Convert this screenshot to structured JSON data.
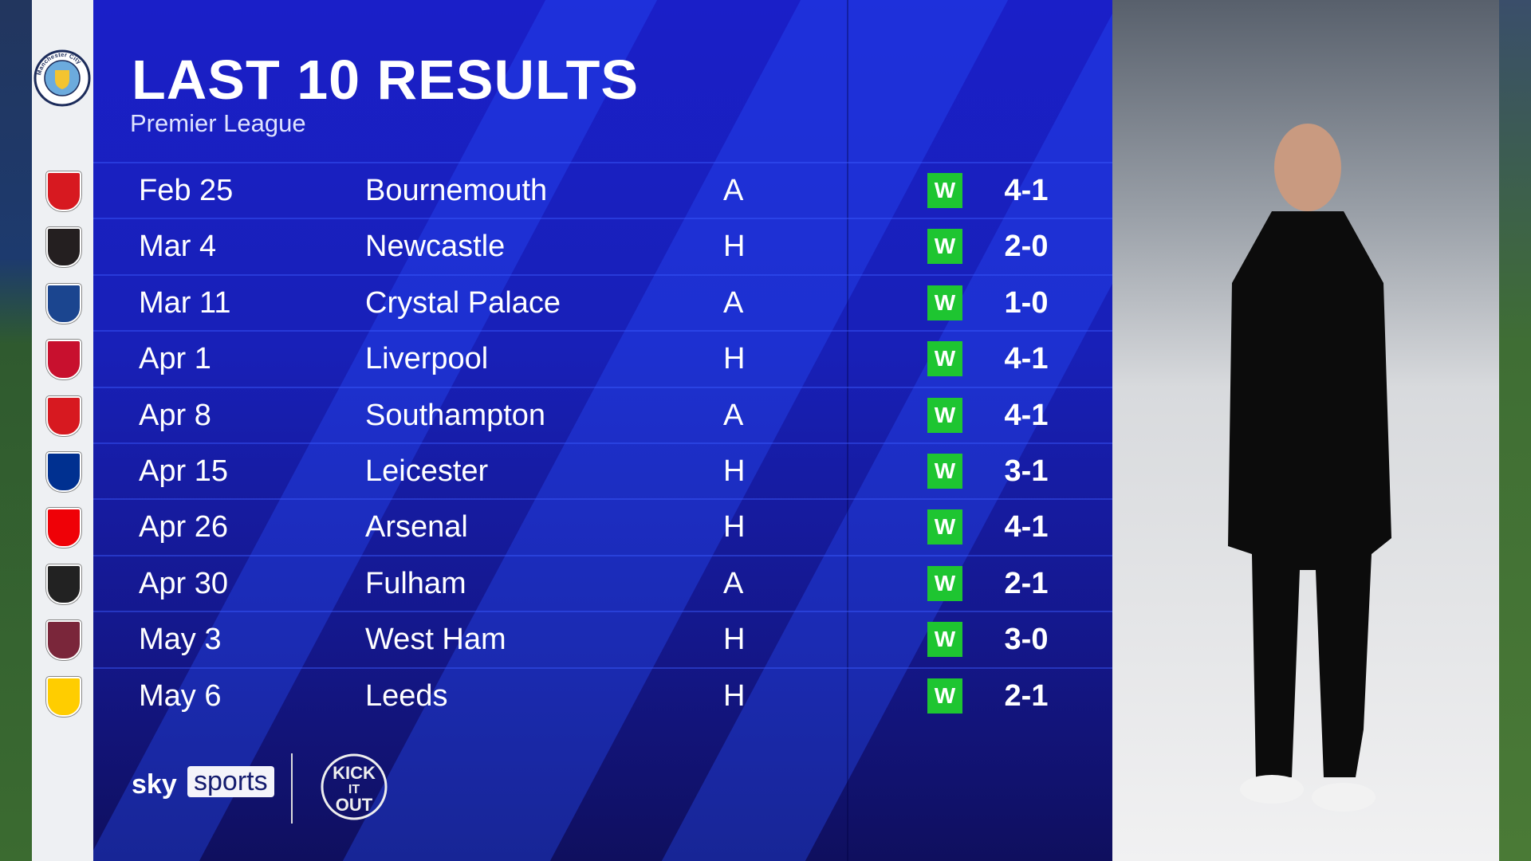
{
  "header": {
    "title": "LAST 10 RESULTS",
    "subtitle": "Premier League"
  },
  "team": "Manchester City",
  "colors": {
    "panel": "#1820b8",
    "win": "#1ec531",
    "crest_column": "#eef0f3"
  },
  "results": [
    {
      "date": "Feb 25",
      "opponent": "Bournemouth",
      "venue": "A",
      "result": "W",
      "score": "4-1",
      "crest_color": "#d71920"
    },
    {
      "date": "Mar 4",
      "opponent": "Newcastle",
      "venue": "H",
      "result": "W",
      "score": "2-0",
      "crest_color": "#241f20"
    },
    {
      "date": "Mar 11",
      "opponent": "Crystal Palace",
      "venue": "A",
      "result": "W",
      "score": "1-0",
      "crest_color": "#1b458f"
    },
    {
      "date": "Apr 1",
      "opponent": "Liverpool",
      "venue": "H",
      "result": "W",
      "score": "4-1",
      "crest_color": "#c8102e"
    },
    {
      "date": "Apr 8",
      "opponent": "Southampton",
      "venue": "A",
      "result": "W",
      "score": "4-1",
      "crest_color": "#d71920"
    },
    {
      "date": "Apr 15",
      "opponent": "Leicester",
      "venue": "H",
      "result": "W",
      "score": "3-1",
      "crest_color": "#003090"
    },
    {
      "date": "Apr 26",
      "opponent": "Arsenal",
      "venue": "H",
      "result": "W",
      "score": "4-1",
      "crest_color": "#ef0107"
    },
    {
      "date": "Apr 30",
      "opponent": "Fulham",
      "venue": "A",
      "result": "W",
      "score": "2-1",
      "crest_color": "#222222"
    },
    {
      "date": "May 3",
      "opponent": "West Ham",
      "venue": "H",
      "result": "W",
      "score": "3-0",
      "crest_color": "#7a263a"
    },
    {
      "date": "May 6",
      "opponent": "Leeds",
      "venue": "H",
      "result": "W",
      "score": "2-1",
      "crest_color": "#ffcd00"
    }
  ],
  "footer": {
    "sky": "sky",
    "sports": "sports",
    "partner_logo": "KICK IT OUT"
  }
}
